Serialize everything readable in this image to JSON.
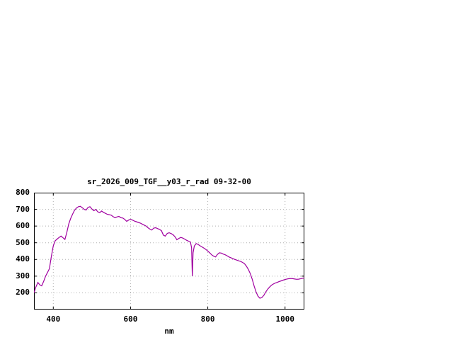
{
  "page": {
    "background": "#ffffff"
  },
  "chart_data": {
    "type": "line",
    "title": "sr_2026_009_TGF__y03_r_rad 09-32-00",
    "xlabel": "nm",
    "ylabel": "",
    "xlim": [
      350,
      1050
    ],
    "ylim": [
      100,
      800
    ],
    "xticks": [
      400,
      600,
      800,
      1000
    ],
    "yticks": [
      200,
      300,
      400,
      500,
      600,
      700,
      800
    ],
    "grid": true,
    "legend": "none",
    "line_color": "#a000a0",
    "grid_color": "#b0b0b0",
    "axis_color": "#000000",
    "x": [
      350,
      355,
      360,
      365,
      370,
      375,
      380,
      385,
      390,
      395,
      400,
      405,
      410,
      415,
      420,
      425,
      430,
      435,
      440,
      445,
      450,
      455,
      460,
      465,
      470,
      475,
      480,
      485,
      490,
      495,
      500,
      505,
      510,
      515,
      520,
      525,
      530,
      535,
      540,
      545,
      550,
      555,
      560,
      565,
      570,
      575,
      580,
      585,
      590,
      595,
      600,
      605,
      610,
      615,
      620,
      625,
      630,
      635,
      640,
      645,
      650,
      655,
      660,
      665,
      670,
      675,
      680,
      685,
      690,
      695,
      700,
      705,
      710,
      715,
      720,
      725,
      730,
      735,
      740,
      745,
      750,
      755,
      758,
      760,
      762,
      765,
      770,
      775,
      780,
      785,
      790,
      795,
      800,
      805,
      810,
      815,
      820,
      825,
      830,
      835,
      840,
      845,
      850,
      855,
      860,
      865,
      870,
      875,
      880,
      885,
      890,
      895,
      900,
      905,
      910,
      915,
      920,
      925,
      930,
      935,
      940,
      945,
      950,
      955,
      960,
      965,
      970,
      975,
      980,
      985,
      990,
      995,
      1000,
      1005,
      1010,
      1015,
      1020,
      1025,
      1030,
      1035,
      1040,
      1045,
      1050
    ],
    "values": [
      200,
      235,
      262,
      248,
      242,
      268,
      300,
      322,
      345,
      420,
      482,
      512,
      522,
      532,
      540,
      530,
      520,
      562,
      612,
      645,
      672,
      695,
      708,
      716,
      718,
      710,
      700,
      696,
      712,
      716,
      702,
      692,
      700,
      686,
      680,
      690,
      682,
      676,
      670,
      668,
      665,
      656,
      650,
      655,
      658,
      650,
      648,
      640,
      628,
      636,
      640,
      636,
      630,
      626,
      622,
      618,
      612,
      606,
      600,
      590,
      582,
      576,
      588,
      590,
      585,
      580,
      572,
      546,
      540,
      556,
      560,
      555,
      548,
      536,
      518,
      526,
      532,
      528,
      522,
      515,
      510,
      505,
      470,
      300,
      440,
      480,
      495,
      490,
      482,
      475,
      468,
      460,
      450,
      440,
      428,
      420,
      415,
      430,
      440,
      438,
      432,
      428,
      422,
      415,
      410,
      405,
      400,
      396,
      392,
      388,
      382,
      375,
      360,
      340,
      315,
      282,
      240,
      205,
      180,
      168,
      172,
      185,
      205,
      222,
      235,
      246,
      253,
      259,
      263,
      268,
      272,
      276,
      280,
      283,
      285,
      286,
      285,
      283,
      281,
      282,
      284,
      287,
      290
    ]
  }
}
